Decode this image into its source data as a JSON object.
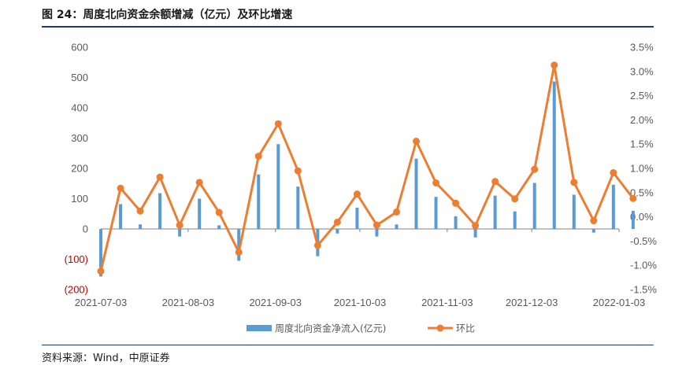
{
  "header": {
    "title": "图 24：周度北向资金余额增减（亿元）及环比增速"
  },
  "footer": {
    "source": "资料来源：Wind，中原证券"
  },
  "chart_data": {
    "type": "bar+line",
    "title": "图 24：周度北向资金余额增减（亿元）及环比增速",
    "x": [
      "2021-07-03",
      "2021-07-10",
      "2021-07-17",
      "2021-07-24",
      "2021-07-31",
      "2021-08-07",
      "2021-08-14",
      "2021-08-21",
      "2021-08-28",
      "2021-09-04",
      "2021-09-11",
      "2021-09-18",
      "2021-09-25",
      "2021-10-02",
      "2021-10-09",
      "2021-10-16",
      "2021-10-23",
      "2021-10-30",
      "2021-11-06",
      "2021-11-13",
      "2021-11-20",
      "2021-11-27",
      "2021-12-04",
      "2021-12-11",
      "2021-12-18",
      "2021-12-25",
      "2022-01-01",
      "2022-01-08"
    ],
    "xtick_labels": [
      "2021-07-03",
      "2021-08-03",
      "2021-09-03",
      "2021-10-03",
      "2021-11-03",
      "2021-12-03",
      "2022-01-03"
    ],
    "y_left": {
      "range": [
        -200,
        600
      ],
      "ticks": [
        600,
        500,
        400,
        300,
        200,
        100,
        0,
        -100,
        -200
      ],
      "tick_labels": [
        "600",
        "500",
        "400",
        "300",
        "200",
        "100",
        "0",
        "(100)",
        "(200)"
      ]
    },
    "y_right": {
      "range": [
        -1.5,
        3.5
      ],
      "ticks": [
        3.5,
        3.0,
        2.5,
        2.0,
        1.5,
        1.0,
        0.5,
        0.0,
        -0.5,
        -1.0,
        -1.5
      ],
      "tick_labels": [
        "3.5%",
        "3.0%",
        "2.5%",
        "2.0%",
        "1.5%",
        "1.0%",
        "0.5%",
        "0.0%",
        "-0.5%",
        "-1.0%",
        "-1.5%"
      ]
    },
    "series": [
      {
        "name": "周度北向资金净流入(亿元)",
        "type": "bar",
        "axis": "left",
        "color": "#5b9bd5",
        "values": [
          -157,
          82,
          15,
          118,
          -25,
          100,
          12,
          -105,
          180,
          280,
          140,
          -90,
          -15,
          70,
          -25,
          15,
          232,
          106,
          42,
          -28,
          110,
          58,
          152,
          487,
          113,
          -12,
          146,
          60
        ]
      },
      {
        "name": "环比",
        "type": "line",
        "axis": "right",
        "color": "#ed7d31",
        "values": [
          -1.12,
          0.59,
          0.12,
          0.82,
          -0.17,
          0.71,
          0.09,
          -0.73,
          1.25,
          1.92,
          0.95,
          -0.59,
          -0.11,
          0.47,
          -0.17,
          0.1,
          1.56,
          0.7,
          0.28,
          -0.18,
          0.73,
          0.37,
          0.98,
          3.13,
          0.71,
          -0.08,
          0.91,
          0.38
        ]
      }
    ],
    "legend": {
      "position": "bottom-center",
      "entries": [
        "周度北向资金净流入(亿元)",
        "环比"
      ]
    },
    "grid": false
  }
}
